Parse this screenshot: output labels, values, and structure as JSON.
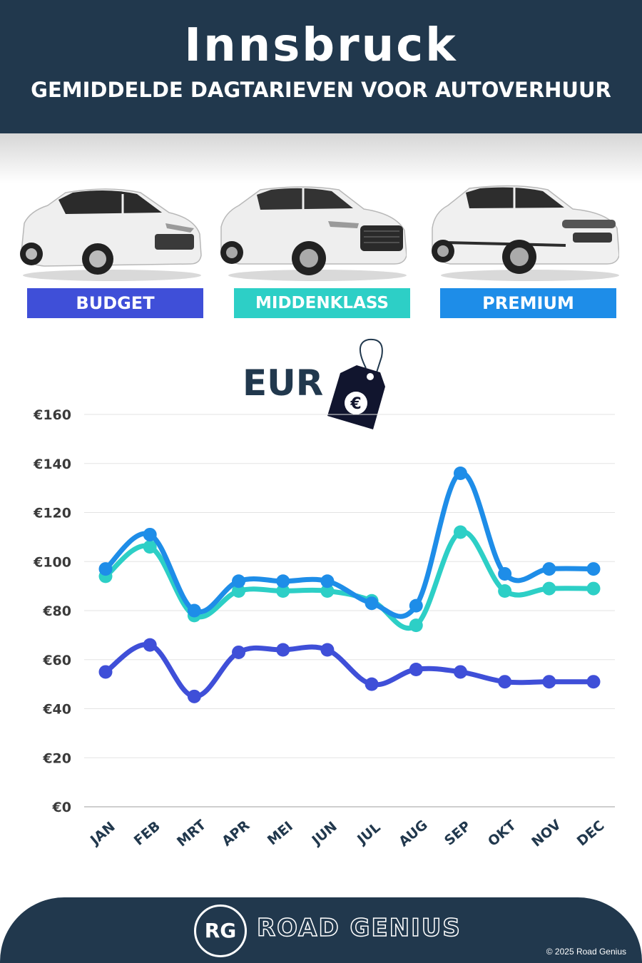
{
  "header": {
    "city": "Innsbruck",
    "subtitle": "GEMIDDELDE DAGTARIEVEN VOOR AUTOVERHUUR"
  },
  "categories": [
    {
      "label": "BUDGET",
      "color": "#3f4fd8"
    },
    {
      "label": "MIDDENKLASS",
      "color": "#2dcfc6"
    },
    {
      "label": "PREMIUM",
      "color": "#1e8de8"
    }
  ],
  "currency_label": "EUR",
  "currency_icon": "euro-price-tag-icon",
  "chart_data": {
    "type": "line",
    "categories": [
      "JAN",
      "FEB",
      "MRT",
      "APR",
      "MEI",
      "JUN",
      "JUL",
      "AUG",
      "SEP",
      "OKT",
      "NOV",
      "DEC"
    ],
    "series": [
      {
        "name": "BUDGET",
        "color": "#3f4fd8",
        "values": [
          55,
          66,
          45,
          63,
          64,
          64,
          50,
          56,
          55,
          51,
          51,
          51
        ]
      },
      {
        "name": "MIDDENKLASS",
        "color": "#2dcfc6",
        "values": [
          94,
          106,
          78,
          88,
          88,
          88,
          84,
          74,
          112,
          88,
          89,
          89
        ]
      },
      {
        "name": "PREMIUM",
        "color": "#1e8de8",
        "values": [
          97,
          111,
          80,
          92,
          92,
          92,
          83,
          82,
          136,
          95,
          97,
          97
        ]
      }
    ],
    "ylim": [
      0,
      160
    ],
    "yticks": [
      0,
      20,
      40,
      60,
      80,
      100,
      120,
      140,
      160
    ],
    "ytick_labels": [
      "€0",
      "€20",
      "€40",
      "€60",
      "€80",
      "€100",
      "€120",
      "€140",
      "€160"
    ],
    "grid": true
  },
  "footer": {
    "logo_initials": "RG",
    "brand": "ROAD GENIUS",
    "copyright": "© 2025 Road Genius"
  }
}
